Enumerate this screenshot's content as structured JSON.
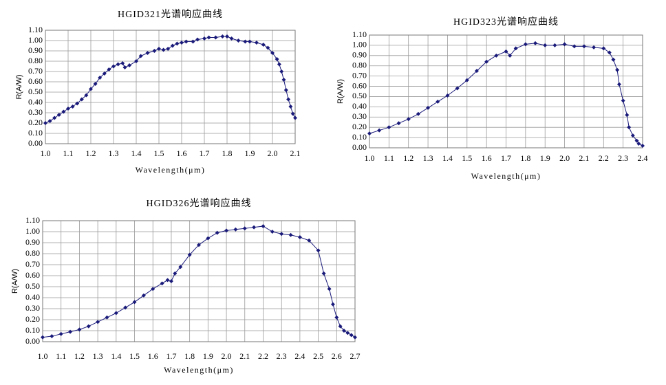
{
  "chart_data": [
    {
      "type": "line",
      "title": "HGID321光谱响应曲线",
      "x_label": "Wavelength(μm)",
      "y_label": "R(A/W)",
      "color": "#1a1a7a",
      "grid": true,
      "xlim": [
        1.0,
        2.1
      ],
      "xticks": [
        {
          "value": 1.0,
          "label": "1.0"
        },
        1.1,
        1.2,
        1.3,
        1.4,
        1.5,
        1.6,
        1.7,
        1.8,
        1.9,
        {
          "value": 2.0,
          "label": "2.0"
        },
        2.1
      ],
      "ylim": [
        0,
        1.1
      ],
      "yticks": [
        {
          "value": 0,
          "label": "0.00"
        },
        {
          "value": 0.1,
          "label": "0.10"
        },
        {
          "value": 0.2,
          "label": "0.20"
        },
        {
          "value": 0.3,
          "label": "0.30"
        },
        {
          "value": 0.4,
          "label": "0.40"
        },
        {
          "value": 0.5,
          "label": "0.50"
        },
        {
          "value": 0.6,
          "label": "0.60"
        },
        {
          "value": 0.7,
          "label": "0.70"
        },
        {
          "value": 0.8,
          "label": "0.80"
        },
        {
          "value": 0.9,
          "label": "0.90"
        },
        {
          "value": 1.0,
          "label": "1.00"
        },
        {
          "value": 1.1,
          "label": "1.10"
        }
      ],
      "x": [
        1.0,
        1.02,
        1.04,
        1.06,
        1.08,
        1.1,
        1.12,
        1.14,
        1.16,
        1.18,
        1.2,
        1.22,
        1.24,
        1.26,
        1.28,
        1.3,
        1.32,
        1.34,
        1.35,
        1.37,
        1.4,
        1.42,
        1.45,
        1.48,
        1.5,
        1.52,
        1.54,
        1.56,
        1.58,
        1.6,
        1.62,
        1.65,
        1.67,
        1.7,
        1.72,
        1.75,
        1.78,
        1.8,
        1.82,
        1.85,
        1.88,
        1.9,
        1.93,
        1.96,
        1.98,
        2.0,
        2.02,
        2.03,
        2.04,
        2.05,
        2.06,
        2.07,
        2.08,
        2.09,
        2.1
      ],
      "values": [
        0.2,
        0.22,
        0.25,
        0.28,
        0.31,
        0.34,
        0.36,
        0.39,
        0.43,
        0.47,
        0.53,
        0.58,
        0.64,
        0.68,
        0.72,
        0.75,
        0.77,
        0.78,
        0.74,
        0.76,
        0.8,
        0.85,
        0.88,
        0.9,
        0.92,
        0.91,
        0.92,
        0.95,
        0.97,
        0.98,
        0.99,
        0.99,
        1.01,
        1.02,
        1.03,
        1.03,
        1.04,
        1.04,
        1.02,
        1.0,
        0.99,
        0.99,
        0.98,
        0.96,
        0.93,
        0.88,
        0.82,
        0.77,
        0.7,
        0.62,
        0.52,
        0.43,
        0.36,
        0.29,
        0.25
      ]
    },
    {
      "type": "line",
      "title": "HGID323光谱响应曲线",
      "x_label": "Wavelength(μm)",
      "y_label": "R(A/W)",
      "color": "#1a1a7a",
      "grid": true,
      "xlim": [
        1.0,
        2.4
      ],
      "xticks": [
        {
          "value": 1.0,
          "label": "1.0"
        },
        1.1,
        1.2,
        1.3,
        1.4,
        1.5,
        1.6,
        1.7,
        1.8,
        1.9,
        {
          "value": 2.0,
          "label": "2.0"
        },
        2.1,
        2.2,
        2.3,
        2.4
      ],
      "ylim": [
        0,
        1.1
      ],
      "yticks": [
        {
          "value": 0,
          "label": "0.00"
        },
        {
          "value": 0.1,
          "label": "0.10"
        },
        {
          "value": 0.2,
          "label": "0.20"
        },
        {
          "value": 0.3,
          "label": "0.30"
        },
        {
          "value": 0.4,
          "label": "0.40"
        },
        {
          "value": 0.5,
          "label": "0.50"
        },
        {
          "value": 0.6,
          "label": "0.60"
        },
        {
          "value": 0.7,
          "label": "0.70"
        },
        {
          "value": 0.8,
          "label": "0.80"
        },
        {
          "value": 0.9,
          "label": "0.90"
        },
        {
          "value": 1.0,
          "label": "1.00"
        },
        {
          "value": 1.1,
          "label": "1.10"
        }
      ],
      "x": [
        1.0,
        1.05,
        1.1,
        1.15,
        1.2,
        1.25,
        1.3,
        1.35,
        1.4,
        1.45,
        1.5,
        1.55,
        1.6,
        1.65,
        1.7,
        1.72,
        1.75,
        1.8,
        1.85,
        1.9,
        1.95,
        2.0,
        2.05,
        2.1,
        2.15,
        2.2,
        2.23,
        2.25,
        2.27,
        2.28,
        2.3,
        2.32,
        2.33,
        2.35,
        2.37,
        2.38,
        2.4
      ],
      "values": [
        0.14,
        0.17,
        0.2,
        0.24,
        0.28,
        0.33,
        0.39,
        0.45,
        0.51,
        0.58,
        0.66,
        0.75,
        0.84,
        0.9,
        0.94,
        0.9,
        0.97,
        1.01,
        1.02,
        1.0,
        1.0,
        1.01,
        0.99,
        0.99,
        0.98,
        0.97,
        0.93,
        0.86,
        0.76,
        0.62,
        0.46,
        0.32,
        0.2,
        0.12,
        0.07,
        0.04,
        0.02
      ]
    },
    {
      "type": "line",
      "title": "HGID326光谱响应曲线",
      "x_label": "Wavelength(μm)",
      "y_label": "R(A/W)",
      "color": "#1a1a7a",
      "grid": true,
      "xlim": [
        1.0,
        2.7
      ],
      "xticks": [
        {
          "value": 1.0,
          "label": "1.0"
        },
        1.1,
        1.2,
        1.3,
        1.4,
        1.5,
        1.6,
        1.7,
        1.8,
        1.9,
        {
          "value": 2.0,
          "label": "2.0"
        },
        2.1,
        2.2,
        2.3,
        2.4,
        2.5,
        2.6,
        2.7
      ],
      "ylim": [
        0,
        1.1
      ],
      "yticks": [
        {
          "value": 0,
          "label": "0.00"
        },
        {
          "value": 0.1,
          "label": "0.10"
        },
        {
          "value": 0.2,
          "label": "0.20"
        },
        {
          "value": 0.3,
          "label": "0.30"
        },
        {
          "value": 0.4,
          "label": "0.40"
        },
        {
          "value": 0.5,
          "label": "0.50"
        },
        {
          "value": 0.6,
          "label": "0.60"
        },
        {
          "value": 0.7,
          "label": "0.70"
        },
        {
          "value": 0.8,
          "label": "0.80"
        },
        {
          "value": 0.9,
          "label": "0.90"
        },
        {
          "value": 1.0,
          "label": "1.00"
        },
        {
          "value": 1.1,
          "label": "1.10"
        }
      ],
      "x": [
        1.0,
        1.05,
        1.1,
        1.15,
        1.2,
        1.25,
        1.3,
        1.35,
        1.4,
        1.45,
        1.5,
        1.55,
        1.6,
        1.65,
        1.68,
        1.7,
        1.72,
        1.75,
        1.8,
        1.85,
        1.9,
        1.95,
        2.0,
        2.05,
        2.1,
        2.15,
        2.2,
        2.25,
        2.3,
        2.35,
        2.4,
        2.45,
        2.5,
        2.53,
        2.56,
        2.58,
        2.6,
        2.62,
        2.64,
        2.66,
        2.68,
        2.7
      ],
      "values": [
        0.04,
        0.05,
        0.07,
        0.09,
        0.11,
        0.14,
        0.18,
        0.22,
        0.26,
        0.31,
        0.36,
        0.42,
        0.48,
        0.53,
        0.56,
        0.55,
        0.62,
        0.68,
        0.79,
        0.88,
        0.94,
        0.99,
        1.01,
        1.02,
        1.03,
        1.04,
        1.05,
        1.0,
        0.98,
        0.97,
        0.95,
        0.92,
        0.83,
        0.62,
        0.48,
        0.34,
        0.22,
        0.14,
        0.1,
        0.08,
        0.06,
        0.04
      ]
    }
  ]
}
